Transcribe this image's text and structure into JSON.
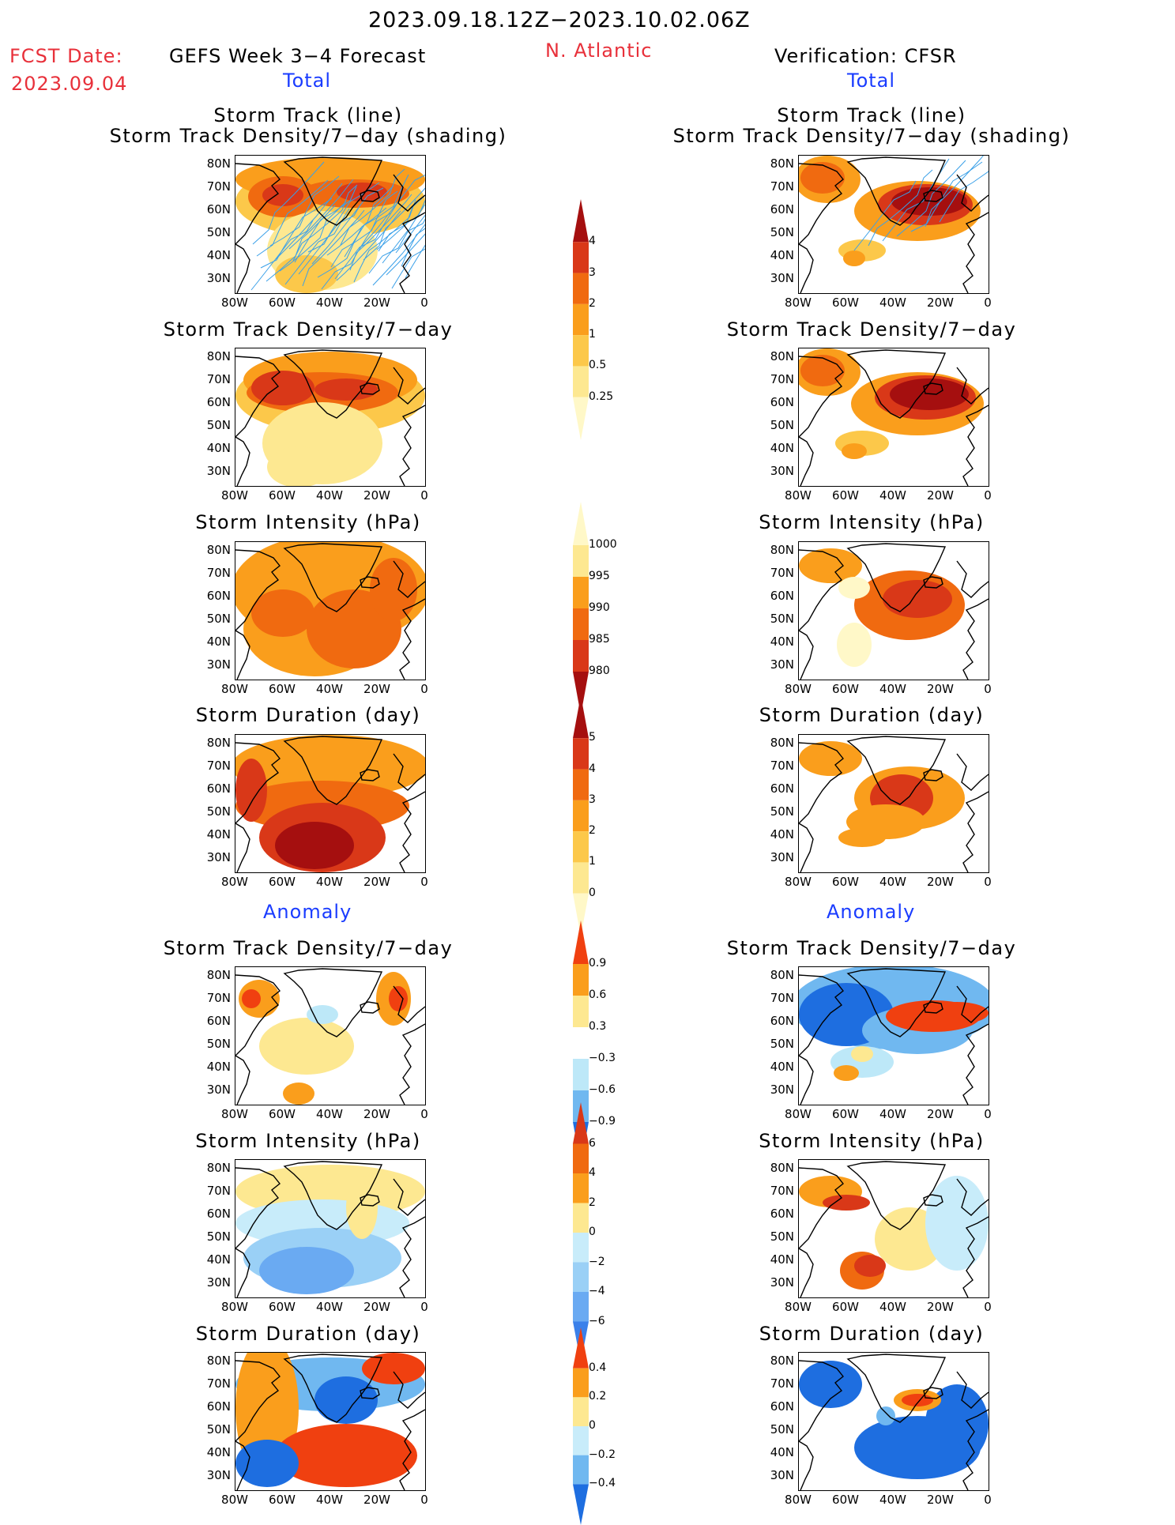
{
  "header": {
    "period": "2023.09.18.12Z−2023.10.02.06Z",
    "fcst_date_label": "FCST Date:",
    "fcst_date_value": "2023.09.04",
    "model": "GEFS Week 3−4 Forecast",
    "region": "N. Atlantic",
    "verification": "Verification: CFSR"
  },
  "sections": {
    "total": "Total",
    "anomaly": "Anomaly"
  },
  "panel_titles": {
    "track_line": "Storm Track (line)",
    "track_shading": "Storm Track Density/7−day (shading)",
    "density": "Storm Track Density/7−day",
    "intensity": "Storm Intensity (hPa)",
    "duration": "Storm Duration (day)"
  },
  "axes": {
    "lat_labels": [
      "80N",
      "70N",
      "60N",
      "50N",
      "40N",
      "30N"
    ],
    "lon_labels": [
      "80W",
      "60W",
      "40W",
      "20W",
      "0"
    ]
  },
  "colorbars": {
    "density_total": {
      "labels": [
        "4",
        "3",
        "2",
        "1",
        "0.5",
        "0.25"
      ],
      "colors": [
        "#a50f0f",
        "#d93818",
        "#f06a10",
        "#fa9e1c",
        "#fcc84a",
        "#fde891",
        "#fff8c8"
      ]
    },
    "intensity_total": {
      "labels": [
        "1000",
        "995",
        "990",
        "985",
        "980"
      ],
      "colors": [
        "#fff8c8",
        "#fde891",
        "#fa9e1c",
        "#f06a10",
        "#d93818",
        "#a50f0f"
      ]
    },
    "duration_total": {
      "labels": [
        "5",
        "4",
        "3",
        "2",
        "1",
        "0"
      ],
      "colors": [
        "#a50f0f",
        "#d93818",
        "#f06a10",
        "#fa9e1c",
        "#fcc84a",
        "#fde891",
        "#fff8c8"
      ]
    },
    "density_anom": {
      "labels": [
        "0.9",
        "0.6",
        "0.3",
        "−0.3",
        "−0.6",
        "−0.9"
      ],
      "colors": [
        "#f04010",
        "#fa9e1c",
        "#fde891",
        "#ffffff",
        "#bde8f8",
        "#70b8f0",
        "#1e6ee0"
      ]
    },
    "intensity_anom": {
      "labels": [
        "6",
        "4",
        "2",
        "0",
        "−2",
        "−4",
        "−6"
      ],
      "colors": [
        "#d93818",
        "#f06a10",
        "#fa9e1c",
        "#fde891",
        "#c8ecfa",
        "#9ad0f6",
        "#6aaaf2",
        "#3a80ea"
      ]
    },
    "duration_anom": {
      "labels": [
        "0.4",
        "0.2",
        "0",
        "−0.2",
        "−0.4"
      ],
      "colors": [
        "#f04010",
        "#fa9e1c",
        "#fde891",
        "#c8ecfa",
        "#70b8f0",
        "#1e6ee0"
      ]
    }
  }
}
